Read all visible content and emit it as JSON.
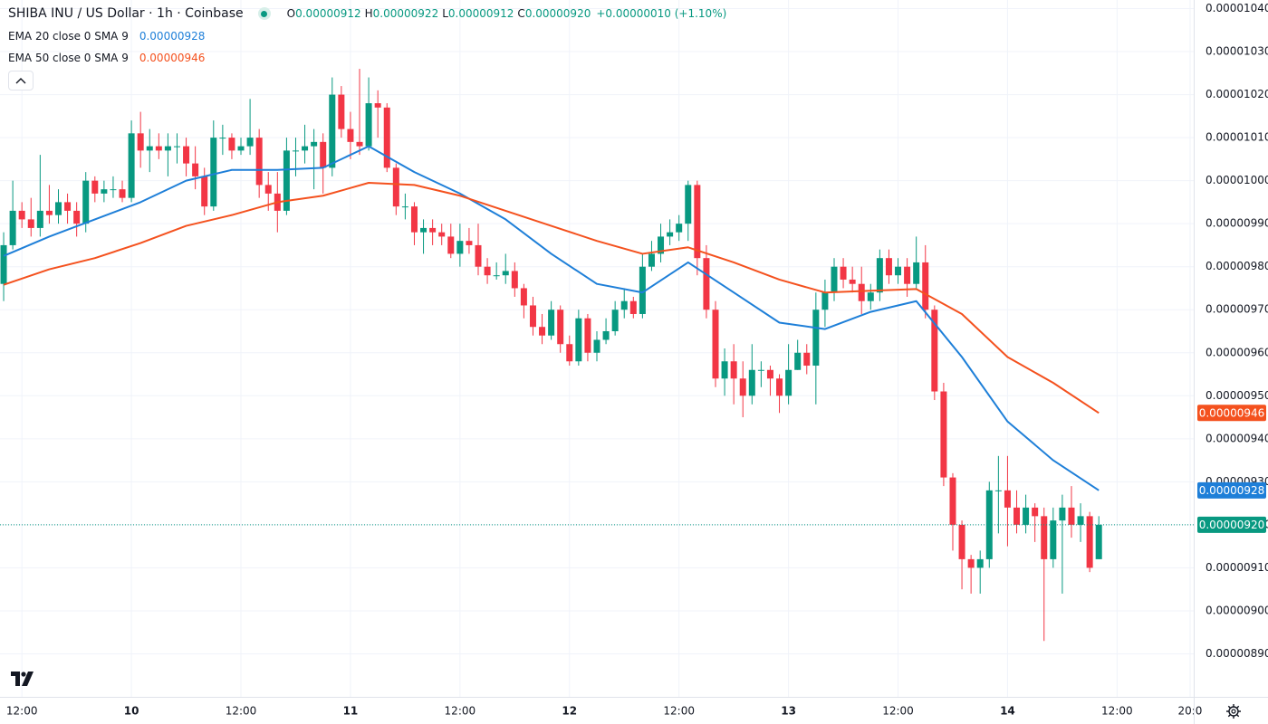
{
  "chart_data": {
    "type": "candlestick",
    "title": "SHIBA INU / US Dollar · 1h · Coinbase",
    "ohlc_header": [
      {
        "key": "O",
        "value": "0.00000912"
      },
      {
        "key": "H",
        "value": "0.00000922"
      },
      {
        "key": "L",
        "value": "0.00000912"
      },
      {
        "key": "C",
        "value": "0.00000920"
      }
    ],
    "change_label": "+0.00000010 (+1.10%)",
    "last_label": "0.00000920",
    "up_color": "#089981",
    "down_color": "#f23645",
    "grid": true,
    "xlim": [
      -0.4,
      130.4
    ],
    "ylim": [
      8.8e-06,
      1.042e-05
    ],
    "xticks": [
      {
        "value": 2,
        "label": "12:00"
      },
      {
        "value": 14,
        "label": "10"
      },
      {
        "value": 26,
        "label": "12:00"
      },
      {
        "value": 38,
        "label": "11"
      },
      {
        "value": 50,
        "label": "12:00"
      },
      {
        "value": 62,
        "label": "12"
      },
      {
        "value": 74,
        "label": "12:00"
      },
      {
        "value": 86,
        "label": "13"
      },
      {
        "value": 98,
        "label": "12:00"
      },
      {
        "value": 110,
        "label": "14"
      },
      {
        "value": 122,
        "label": "12:00"
      },
      {
        "value": 130,
        "label": "20:0"
      }
    ],
    "yticks": [
      {
        "value": 1.04e-05,
        "label": "0.00001040"
      },
      {
        "value": 1.03e-05,
        "label": "0.00001030"
      },
      {
        "value": 1.02e-05,
        "label": "0.00001020"
      },
      {
        "value": 1.01e-05,
        "label": "0.00001010"
      },
      {
        "value": 1e-05,
        "label": "0.00001000"
      },
      {
        "value": 9.9e-06,
        "label": "0.00000990"
      },
      {
        "value": 9.8e-06,
        "label": "0.00000980"
      },
      {
        "value": 9.7e-06,
        "label": "0.00000970"
      },
      {
        "value": 9.6e-06,
        "label": "0.00000960"
      },
      {
        "value": 9.5e-06,
        "label": "0.00000950"
      },
      {
        "value": 9.4e-06,
        "label": "0.00000940"
      },
      {
        "value": 9.3e-06,
        "label": "0.00000930"
      },
      {
        "value": 9.2e-06,
        "label": "0.00000920"
      },
      {
        "value": 9.1e-06,
        "label": "0.00000910"
      },
      {
        "value": 9e-06,
        "label": "0.00000900"
      },
      {
        "value": 8.9e-06,
        "label": "0.00000890"
      }
    ],
    "x": [
      0,
      1,
      2,
      3,
      4,
      5,
      6,
      7,
      8,
      9,
      10,
      11,
      12,
      13,
      14,
      15,
      16,
      17,
      18,
      19,
      20,
      21,
      22,
      23,
      24,
      25,
      26,
      27,
      28,
      29,
      30,
      31,
      32,
      33,
      34,
      35,
      36,
      37,
      38,
      39,
      40,
      41,
      42,
      43,
      44,
      45,
      46,
      47,
      48,
      49,
      50,
      51,
      52,
      53,
      54,
      55,
      56,
      57,
      58,
      59,
      60,
      61,
      62,
      63,
      64,
      65,
      66,
      67,
      68,
      69,
      70,
      71,
      72,
      73,
      74,
      75,
      76,
      77,
      78,
      79,
      80,
      81,
      82,
      83,
      84,
      85,
      86,
      87,
      88,
      89,
      90,
      91,
      92,
      93,
      94,
      95,
      96,
      97,
      98,
      99,
      100,
      101,
      102,
      103,
      104,
      105,
      106,
      107,
      108,
      109,
      110,
      111,
      112,
      113,
      114,
      115,
      116,
      117,
      118,
      119,
      120
    ],
    "open": [
      9.76e-06,
      9.85e-06,
      9.93e-06,
      9.91e-06,
      9.89e-06,
      9.93e-06,
      9.92e-06,
      9.95e-06,
      9.93e-06,
      9.9e-06,
      1e-05,
      9.97e-06,
      9.98e-06,
      9.98e-06,
      9.96e-06,
      1.011e-05,
      1.007e-05,
      1.008e-05,
      1.007e-05,
      1.008e-05,
      1.008e-05,
      1.004e-05,
      1.001e-05,
      9.94e-06,
      1.01e-05,
      1.01e-05,
      1.007e-05,
      1.008e-05,
      1.01e-05,
      9.99e-06,
      9.97e-06,
      9.93e-06,
      1.007e-05,
      1.007e-05,
      1.008e-05,
      1.009e-05,
      1.003e-05,
      1.02e-05,
      1.012e-05,
      1.009e-05,
      1.008e-05,
      1.018e-05,
      1.017e-05,
      1.003e-05,
      9.94e-06,
      9.94e-06,
      9.88e-06,
      9.89e-06,
      9.88e-06,
      9.87e-06,
      9.83e-06,
      9.86e-06,
      9.85e-06,
      9.8e-06,
      9.78e-06,
      9.78e-06,
      9.79e-06,
      9.75e-06,
      9.71e-06,
      9.66e-06,
      9.64e-06,
      9.7e-06,
      9.62e-06,
      9.58e-06,
      9.68e-06,
      9.6e-06,
      9.63e-06,
      9.65e-06,
      9.7e-06,
      9.72e-06,
      9.69e-06,
      9.8e-06,
      9.83e-06,
      9.87e-06,
      9.88e-06,
      9.9e-06,
      9.99e-06,
      9.82e-06,
      9.7e-06,
      9.54e-06,
      9.58e-06,
      9.54e-06,
      9.5e-06,
      9.56e-06,
      9.56e-06,
      9.54e-06,
      9.5e-06,
      9.56e-06,
      9.6e-06,
      9.57e-06,
      9.7e-06,
      9.74e-06,
      9.8e-06,
      9.77e-06,
      9.76e-06,
      9.72e-06,
      9.74e-06,
      9.82e-06,
      9.78e-06,
      9.8e-06,
      9.76e-06,
      9.81e-06,
      9.7e-06,
      9.51e-06,
      9.31e-06,
      9.2e-06,
      9.12e-06,
      9.1e-06,
      9.12e-06,
      9.28e-06,
      9.28e-06,
      9.24e-06,
      9.2e-06,
      9.24e-06,
      9.22e-06,
      9.12e-06,
      9.21e-06,
      9.24e-06,
      9.2e-06,
      9.22e-06,
      9.12e-06
    ],
    "high": [
      9.88e-06,
      1e-05,
      9.95e-06,
      9.96e-06,
      1.006e-05,
      9.99e-06,
      9.98e-06,
      9.97e-06,
      9.95e-06,
      1.002e-05,
      1.001e-05,
      1e-05,
      1.001e-05,
      1e-05,
      1.014e-05,
      1.016e-05,
      1.012e-05,
      1.011e-05,
      1.011e-05,
      1.011e-05,
      1.01e-05,
      1.008e-05,
      1.003e-05,
      1.014e-05,
      1.013e-05,
      1.011e-05,
      1.01e-05,
      1.019e-05,
      1.012e-05,
      1.002e-05,
      1.002e-05,
      1.01e-05,
      1.01e-05,
      1.013e-05,
      1.012e-05,
      1.011e-05,
      1.024e-05,
      1.022e-05,
      1.016e-05,
      1.026e-05,
      1.024e-05,
      1.021e-05,
      1.018e-05,
      1.004e-05,
      9.97e-06,
      9.95e-06,
      9.91e-06,
      9.91e-06,
      9.9e-06,
      9.9e-06,
      9.9e-06,
      9.89e-06,
      9.9e-06,
      9.82e-06,
      9.81e-06,
      9.83e-06,
      9.81e-06,
      9.76e-06,
      9.73e-06,
      9.69e-06,
      9.72e-06,
      9.71e-06,
      9.64e-06,
      9.7e-06,
      9.69e-06,
      9.65e-06,
      9.68e-06,
      9.72e-06,
      9.75e-06,
      9.73e-06,
      9.83e-06,
      9.86e-06,
      9.9e-06,
      9.91e-06,
      9.92e-06,
      1e-05,
      1e-05,
      9.85e-06,
      9.72e-06,
      9.61e-06,
      9.62e-06,
      9.58e-06,
      9.62e-06,
      9.58e-06,
      9.57e-06,
      9.55e-06,
      9.62e-06,
      9.63e-06,
      9.62e-06,
      9.74e-06,
      9.77e-06,
      9.82e-06,
      9.82e-06,
      9.8e-06,
      9.8e-06,
      9.76e-06,
      9.84e-06,
      9.84e-06,
      9.82e-06,
      9.82e-06,
      9.87e-06,
      9.85e-06,
      9.71e-06,
      9.53e-06,
      9.32e-06,
      9.21e-06,
      9.13e-06,
      9.14e-06,
      9.3e-06,
      9.36e-06,
      9.36e-06,
      9.28e-06,
      9.27e-06,
      9.25e-06,
      9.24e-06,
      9.24e-06,
      9.27e-06,
      9.29e-06,
      9.25e-06,
      9.23e-06,
      9.22e-06
    ],
    "low": [
      9.72e-06,
      9.84e-06,
      9.89e-06,
      9.87e-06,
      9.87e-06,
      9.9e-06,
      9.9e-06,
      9.9e-06,
      9.87e-06,
      9.88e-06,
      9.95e-06,
      9.95e-06,
      9.96e-06,
      9.95e-06,
      9.95e-06,
      1.003e-05,
      1.002e-05,
      1.005e-05,
      1.001e-05,
      1.004e-05,
      1.001e-05,
      9.98e-06,
      9.92e-06,
      9.93e-06,
      1.006e-05,
      1.005e-05,
      1.006e-05,
      1.006e-05,
      9.96e-06,
      9.93e-06,
      9.88e-06,
      9.92e-06,
      1.001e-05,
      1.004e-05,
      9.98e-06,
      9.97e-06,
      1.001e-05,
      1.01e-05,
      1.005e-05,
      1.006e-05,
      1.007e-05,
      1.01e-05,
      1.002e-05,
      9.92e-06,
      9.91e-06,
      9.85e-06,
      9.83e-06,
      9.85e-06,
      9.85e-06,
      9.82e-06,
      9.8e-06,
      9.83e-06,
      9.78e-06,
      9.76e-06,
      9.77e-06,
      9.76e-06,
      9.73e-06,
      9.68e-06,
      9.64e-06,
      9.62e-06,
      9.63e-06,
      9.6e-06,
      9.57e-06,
      9.57e-06,
      9.58e-06,
      9.58e-06,
      9.62e-06,
      9.64e-06,
      9.68e-06,
      9.68e-06,
      9.68e-06,
      9.79e-06,
      9.81e-06,
      9.85e-06,
      9.86e-06,
      9.86e-06,
      9.78e-06,
      9.68e-06,
      9.52e-06,
      9.5e-06,
      9.48e-06,
      9.45e-06,
      9.48e-06,
      9.52e-06,
      9.5e-06,
      9.46e-06,
      9.48e-06,
      9.56e-06,
      9.55e-06,
      9.48e-06,
      9.66e-06,
      9.72e-06,
      9.75e-06,
      9.74e-06,
      9.69e-06,
      9.7e-06,
      9.72e-06,
      9.76e-06,
      9.76e-06,
      9.73e-06,
      9.75e-06,
      9.68e-06,
      9.49e-06,
      9.29e-06,
      9.14e-06,
      9.05e-06,
      9.04e-06,
      9.04e-06,
      9.1e-06,
      9.18e-06,
      9.15e-06,
      9.18e-06,
      9.18e-06,
      9.16e-06,
      8.93e-06,
      9.1e-06,
      9.04e-06,
      9.17e-06,
      9.16e-06,
      9.09e-06,
      9.12e-06
    ],
    "close": [
      9.85e-06,
      9.93e-06,
      9.91e-06,
      9.89e-06,
      9.93e-06,
      9.92e-06,
      9.95e-06,
      9.93e-06,
      9.9e-06,
      1e-05,
      9.97e-06,
      9.98e-06,
      9.98e-06,
      9.96e-06,
      1.011e-05,
      1.007e-05,
      1.008e-05,
      1.007e-05,
      1.008e-05,
      1.008e-05,
      1.004e-05,
      1.001e-05,
      9.94e-06,
      1.01e-05,
      1.01e-05,
      1.007e-05,
      1.008e-05,
      1.01e-05,
      9.99e-06,
      9.97e-06,
      9.93e-06,
      1.007e-05,
      1.007e-05,
      1.008e-05,
      1.009e-05,
      1.003e-05,
      1.02e-05,
      1.012e-05,
      1.009e-05,
      1.008e-05,
      1.018e-05,
      1.017e-05,
      1.003e-05,
      9.94e-06,
      9.94e-06,
      9.88e-06,
      9.89e-06,
      9.88e-06,
      9.87e-06,
      9.83e-06,
      9.86e-06,
      9.85e-06,
      9.8e-06,
      9.78e-06,
      9.78e-06,
      9.79e-06,
      9.75e-06,
      9.71e-06,
      9.66e-06,
      9.64e-06,
      9.7e-06,
      9.62e-06,
      9.58e-06,
      9.68e-06,
      9.6e-06,
      9.63e-06,
      9.65e-06,
      9.7e-06,
      9.72e-06,
      9.69e-06,
      9.8e-06,
      9.83e-06,
      9.87e-06,
      9.88e-06,
      9.9e-06,
      9.99e-06,
      9.82e-06,
      9.7e-06,
      9.54e-06,
      9.58e-06,
      9.54e-06,
      9.5e-06,
      9.56e-06,
      9.56e-06,
      9.54e-06,
      9.5e-06,
      9.56e-06,
      9.6e-06,
      9.57e-06,
      9.7e-06,
      9.74e-06,
      9.8e-06,
      9.77e-06,
      9.76e-06,
      9.72e-06,
      9.74e-06,
      9.82e-06,
      9.78e-06,
      9.8e-06,
      9.76e-06,
      9.81e-06,
      9.7e-06,
      9.51e-06,
      9.31e-06,
      9.2e-06,
      9.12e-06,
      9.1e-06,
      9.12e-06,
      9.28e-06,
      9.28e-06,
      9.24e-06,
      9.2e-06,
      9.24e-06,
      9.22e-06,
      9.12e-06,
      9.21e-06,
      9.24e-06,
      9.2e-06,
      9.22e-06,
      9.1e-06,
      9.2e-06
    ],
    "series": [
      {
        "name": "EMA 20 close 0 SMA 9",
        "color": "#1e7fd8",
        "value_label": "0.00000928",
        "x": [
          0,
          5,
          10,
          15,
          20,
          25,
          30,
          35,
          40,
          45,
          50,
          55,
          60,
          65,
          70,
          75,
          80,
          85,
          90,
          95,
          100,
          105,
          110,
          115,
          120
        ],
        "values": [
          9.825e-06,
          9.87e-06,
          9.91e-06,
          9.95e-06,
          1e-05,
          1.0025e-05,
          1.0025e-05,
          1.003e-05,
          1.008e-05,
          1.002e-05,
          9.97e-06,
          9.91e-06,
          9.83e-06,
          9.76e-06,
          9.74e-06,
          9.81e-06,
          9.74e-06,
          9.67e-06,
          9.655e-06,
          9.695e-06,
          9.72e-06,
          9.59e-06,
          9.44e-06,
          9.35e-06,
          9.28e-06
        ]
      },
      {
        "name": "EMA 50 close 0 SMA 9",
        "color": "#f4511e",
        "value_label": "0.00000946",
        "x": [
          0,
          5,
          10,
          15,
          20,
          25,
          30,
          35,
          40,
          45,
          50,
          55,
          60,
          65,
          70,
          75,
          80,
          85,
          90,
          95,
          100,
          105,
          110,
          115,
          120
        ],
        "values": [
          9.758e-06,
          9.794e-06,
          9.82e-06,
          9.855e-06,
          9.895e-06,
          9.92e-06,
          9.95e-06,
          9.965e-06,
          9.995e-06,
          9.99e-06,
          9.965e-06,
          9.93e-06,
          9.895e-06,
          9.86e-06,
          9.83e-06,
          9.845e-06,
          9.81e-06,
          9.77e-06,
          9.74e-06,
          9.744e-06,
          9.748e-06,
          9.69e-06,
          9.59e-06,
          9.53e-06,
          9.46e-06
        ]
      }
    ]
  }
}
